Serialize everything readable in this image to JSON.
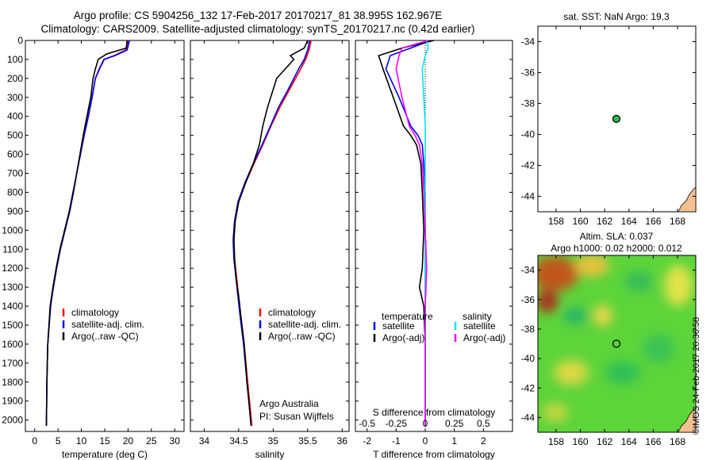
{
  "header": {
    "title_line1": "Argo profile: CS 5904256_132 17-Feb-2017 20170217_81 38.995S 162.967E",
    "title_line2": "Climatology: CARS2009. Satellite-adjusted climatology: synTS_20170217.nc (0.42d earlier)"
  },
  "colors": {
    "climatology": "#ff0000",
    "satellite": "#0000ff",
    "argo": "#000000",
    "salinity_satellite": "#00e5ff",
    "salinity_argo": "#ff00ff",
    "land": "#f5c08f",
    "float_marker": "#2fb54a"
  },
  "credit": "©IMOS 24-Feb-2017 20:36:58",
  "chart_data": [
    {
      "id": "temperature",
      "type": "line",
      "xlabel": "temperature (deg C)",
      "ylabel": "",
      "xlim": [
        -2,
        32
      ],
      "ylim": [
        2060,
        0
      ],
      "xticks": [
        0,
        5,
        10,
        15,
        20,
        25,
        30
      ],
      "yticks": [
        0,
        100,
        200,
        300,
        400,
        500,
        600,
        700,
        800,
        900,
        1000,
        1100,
        1200,
        1300,
        1400,
        1500,
        1600,
        1700,
        1800,
        1900,
        2000
      ],
      "legend": [
        "climatology",
        "satellite-adj. clim.",
        "Argo(..raw -QC)"
      ],
      "legend_position": "lower-right",
      "series": [
        {
          "name": "climatology",
          "color": "#ff0000",
          "x": [
            20,
            19.5,
            17,
            14.8,
            13.8,
            13,
            12.3,
            11.5,
            10.6,
            9.8,
            9,
            8.3,
            7.5,
            6.5,
            5.5,
            4.7,
            4,
            3.4,
            2.8,
            2.6,
            2.5
          ],
          "y": [
            0,
            50,
            80,
            100,
            150,
            200,
            300,
            400,
            500,
            600,
            700,
            800,
            900,
            1000,
            1100,
            1200,
            1300,
            1400,
            1600,
            1800,
            2030
          ]
        },
        {
          "name": "satellite-adj. clim.",
          "color": "#0000ff",
          "x": [
            20.3,
            19.8,
            17.2,
            14.9,
            13.9,
            13,
            12.3,
            11.5,
            10.6,
            9.8,
            9,
            8.3,
            7.5,
            6.5,
            5.5,
            4.7,
            4,
            3.4,
            2.8,
            2.6,
            2.5
          ],
          "y": [
            0,
            50,
            80,
            100,
            150,
            200,
            300,
            400,
            500,
            600,
            700,
            800,
            900,
            1000,
            1100,
            1200,
            1300,
            1400,
            1600,
            1800,
            2030
          ]
        },
        {
          "name": "Argo(..raw -QC)",
          "color": "#000000",
          "x": [
            19.8,
            19.6,
            15.5,
            13.6,
            13,
            12.5,
            12,
            11.2,
            10.4,
            9.7,
            9,
            8.2,
            7.4,
            6.4,
            5.4,
            4.6,
            3.9,
            3.3,
            2.8,
            2.6,
            2.5
          ],
          "y": [
            0,
            40,
            70,
            100,
            150,
            200,
            300,
            400,
            500,
            600,
            700,
            800,
            900,
            1000,
            1100,
            1200,
            1300,
            1400,
            1600,
            1800,
            2030
          ]
        }
      ]
    },
    {
      "id": "salinity",
      "type": "line",
      "xlabel": "salinity",
      "ylabel": "",
      "xlim": [
        33.8,
        36.1
      ],
      "ylim": [
        2060,
        0
      ],
      "xticks": [
        34,
        34.5,
        35,
        35.5,
        36
      ],
      "legend": [
        "climatology",
        "satellite-adj. clim.",
        "Argo(..raw -QC)"
      ],
      "legend_position": "lower-right",
      "annotation": [
        "Argo Australia",
        "PI: Susan Wijffels"
      ],
      "series": [
        {
          "name": "climatology",
          "color": "#ff0000",
          "x": [
            35.55,
            35.52,
            35.47,
            35.4,
            35.25,
            35.1,
            34.97,
            34.85,
            34.72,
            34.6,
            34.5,
            34.45,
            34.43,
            34.44,
            34.47,
            34.5,
            34.53,
            34.58,
            34.63,
            34.67,
            34.69
          ],
          "y": [
            0,
            50,
            100,
            150,
            250,
            350,
            450,
            550,
            650,
            750,
            850,
            950,
            1050,
            1150,
            1250,
            1350,
            1450,
            1600,
            1800,
            1950,
            2030
          ]
        },
        {
          "name": "satellite-adj. clim.",
          "color": "#0000ff",
          "x": [
            35.53,
            35.5,
            35.45,
            35.37,
            35.23,
            35.08,
            34.96,
            34.84,
            34.71,
            34.59,
            34.49,
            34.44,
            34.42,
            34.43,
            34.46,
            34.49,
            34.52,
            34.57,
            34.62,
            34.66,
            34.68
          ],
          "y": [
            0,
            50,
            100,
            150,
            250,
            350,
            450,
            550,
            650,
            750,
            850,
            950,
            1050,
            1150,
            1250,
            1350,
            1450,
            1600,
            1800,
            1950,
            2030
          ]
        },
        {
          "name": "Argo(..raw -QC)",
          "color": "#000000",
          "x": [
            35.5,
            35.45,
            35.25,
            35.3,
            35.05,
            34.92,
            34.85,
            34.8,
            34.71,
            34.6,
            34.5,
            34.45,
            34.43,
            34.44,
            34.46,
            34.5,
            34.53,
            34.58,
            34.62,
            34.66,
            34.68
          ],
          "y": [
            0,
            40,
            80,
            100,
            200,
            350,
            450,
            550,
            650,
            750,
            850,
            950,
            1050,
            1150,
            1250,
            1350,
            1450,
            1600,
            1800,
            1950,
            2030
          ]
        }
      ]
    },
    {
      "id": "differences",
      "type": "line",
      "xlabel": "T difference from climatology",
      "xlabel_top": "S difference from climatology",
      "ylabel": "",
      "xlim": [
        -2.4,
        3
      ],
      "ylim": [
        2060,
        0
      ],
      "xticks": [
        -2,
        -1,
        0,
        1,
        2
      ],
      "xticks_top_values": [
        -0.5,
        -0.25,
        0,
        0.25,
        0.5
      ],
      "xticks_top_labels": [
        "-0.5",
        "-0.25",
        "0",
        "0.25",
        "0.5"
      ],
      "legend_title_temperature": "temperature",
      "legend_title_salinity": "salinity",
      "legend": [
        "satellite",
        "Argo(-adj)",
        "satellite",
        "Argo(-adj)"
      ],
      "legend_position": "lower-center",
      "series": [
        {
          "name": "satellite",
          "color": "#0000ff",
          "x": [
            0.2,
            -0.5,
            -1.2,
            -1.35,
            -0.9,
            -0.5,
            -0.25,
            -0.1,
            -0.05,
            0,
            0,
            0,
            0,
            0,
            0,
            0,
            0,
            0
          ],
          "y": [
            0,
            40,
            80,
            150,
            300,
            450,
            500,
            550,
            650,
            800,
            1000,
            1200,
            1400,
            1600,
            1800,
            1900,
            2000,
            2030
          ]
        },
        {
          "name": "Argo(-adj)",
          "color": "#000000",
          "x": [
            0.3,
            -0.8,
            -1.6,
            -1.45,
            -1.1,
            -0.75,
            -0.5,
            -0.3,
            -0.15,
            -0.1,
            -0.05,
            -0.1,
            -0.2,
            -0.05,
            0,
            0,
            0,
            0
          ],
          "y": [
            0,
            40,
            80,
            150,
            300,
            450,
            500,
            550,
            650,
            800,
            1000,
            1200,
            1300,
            1400,
            1600,
            1800,
            2000,
            2030
          ]
        },
        {
          "name": "satellite",
          "color": "#00e5ff",
          "x": [
            0.05,
            0.1,
            0,
            -0.1,
            -0.05,
            0,
            0,
            0,
            0,
            0,
            0,
            0,
            0,
            0,
            0,
            0,
            0,
            0
          ],
          "y": [
            0,
            40,
            80,
            150,
            300,
            450,
            500,
            550,
            650,
            800,
            1000,
            1200,
            1400,
            1600,
            1800,
            1900,
            2000,
            2030
          ]
        },
        {
          "name": "Argo(-adj)",
          "color": "#ff00ff",
          "x": [
            0.1,
            -0.8,
            -0.9,
            -1,
            -0.8,
            -0.55,
            -0.35,
            -0.2,
            -0.1,
            -0.05,
            0,
            0.05,
            0,
            0,
            0,
            0,
            0,
            0
          ],
          "y": [
            0,
            40,
            80,
            150,
            300,
            450,
            500,
            550,
            650,
            800,
            1000,
            1200,
            1400,
            1600,
            1800,
            1900,
            2000,
            2030
          ]
        }
      ]
    },
    {
      "id": "sst_map",
      "type": "scatter",
      "title": "sat. SST: NaN Argo: 19.3",
      "xlabel": "",
      "ylabel": "",
      "xlim": [
        156.5,
        169.5
      ],
      "ylim": [
        -45,
        -33
      ],
      "xticks": [
        158,
        160,
        162,
        164,
        166,
        168
      ],
      "yticks": [
        -34,
        -36,
        -38,
        -40,
        -42,
        -44
      ],
      "points": [
        {
          "lon": 162.967,
          "lat": -38.995
        }
      ]
    },
    {
      "id": "sla_map",
      "type": "heatmap",
      "title_line1": "Altim. SLA: 0.037",
      "title_line2": "Argo h1000: 0.02 h2000: 0.012",
      "xlabel": "",
      "ylabel": "",
      "xlim": [
        156.5,
        169.5
      ],
      "ylim": [
        -45,
        -33
      ],
      "xticks": [
        158,
        160,
        162,
        164,
        166,
        168
      ],
      "yticks": [
        -34,
        -36,
        -38,
        -40,
        -42,
        -44
      ],
      "points": [
        {
          "lon": 162.967,
          "lat": -38.995
        }
      ]
    }
  ]
}
